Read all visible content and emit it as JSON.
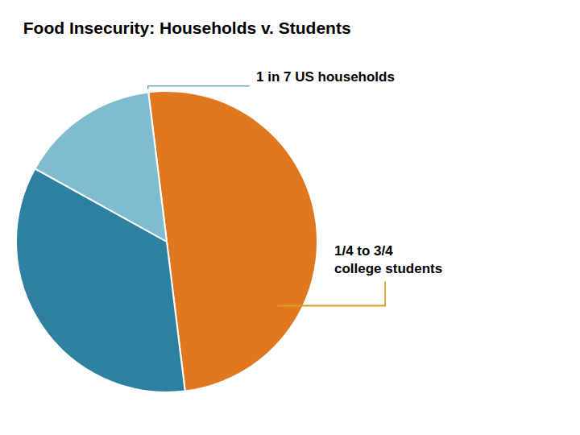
{
  "chart_data": {
    "type": "pie",
    "title": "Food Insecurity: Households v. Students",
    "values": [
      50,
      35,
      15
    ],
    "colors": [
      "#e07820",
      "#2e80a0",
      "#80bcd0"
    ],
    "annotations": [
      {
        "text": "1 in 7 US households",
        "color": "#6aaac0"
      },
      {
        "text": "1/4 to 3/4\ncollege students",
        "color": "#d4a020"
      }
    ]
  }
}
